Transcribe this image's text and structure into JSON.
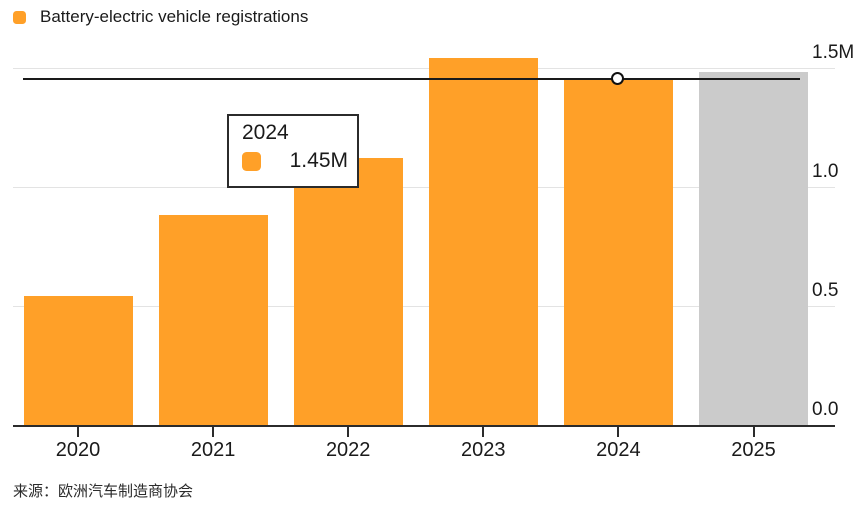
{
  "legend": {
    "label": "Battery-electric vehicle registrations"
  },
  "tooltip": {
    "title": "2024",
    "value": "1.45M"
  },
  "source": {
    "label": "来源：欧洲汽车制造商协会"
  },
  "colors": {
    "bar": "#FFA028",
    "bar_forecast": "#CBCBCB",
    "grid": "#E3E3E3",
    "axis": "#2B2B2B",
    "tick": "#2B2B2B",
    "hover_line": "#1A1A1A",
    "marker_stroke": "#111111",
    "text": "#1A1A1A"
  },
  "chart_data": {
    "type": "bar",
    "title": "Battery-electric vehicle registrations",
    "categories": [
      "2020",
      "2021",
      "2022",
      "2023",
      "2024",
      "2025"
    ],
    "values": [
      0.54,
      0.88,
      1.12,
      1.54,
      1.45,
      1.48
    ],
    "unit": "M",
    "bar_colors": [
      "#FFA028",
      "#FFA028",
      "#FFA028",
      "#FFA028",
      "#FFA028",
      "#CBCBCB"
    ],
    "ylim": [
      0,
      1.5
    ],
    "ytick_values": [
      0,
      0.5,
      1.0,
      1.5
    ],
    "ytick_labels": [
      "0.0",
      "0.5",
      "1.0",
      "1.5M"
    ],
    "grid": "horizontal",
    "axis_side": "right",
    "legend_position": "top-left",
    "hover": {
      "category": "2024",
      "value": 1.45,
      "label": "1.45M"
    }
  }
}
